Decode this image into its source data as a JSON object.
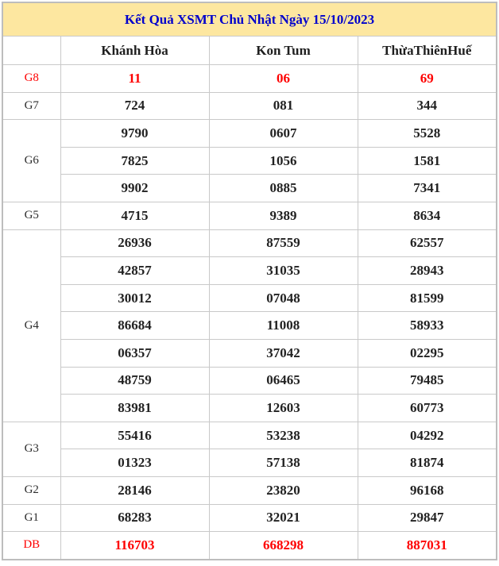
{
  "title": "Kết Quả XSMT Chủ Nhật Ngày 15/10/2023",
  "columns": [
    "Khánh Hòa",
    "Kon Tum",
    "ThừaThiênHuế"
  ],
  "colors": {
    "title_bg": "#fde7a0",
    "title_text": "#0000cc",
    "highlight": "#fe0000",
    "value_text": "#222222",
    "border": "#c9c9c9"
  },
  "groups": [
    {
      "label": "G8",
      "highlight": true,
      "rows": [
        [
          "11",
          "06",
          "69"
        ]
      ]
    },
    {
      "label": "G7",
      "highlight": false,
      "rows": [
        [
          "724",
          "081",
          "344"
        ]
      ]
    },
    {
      "label": "G6",
      "highlight": false,
      "rows": [
        [
          "9790",
          "0607",
          "5528"
        ],
        [
          "7825",
          "1056",
          "1581"
        ],
        [
          "9902",
          "0885",
          "7341"
        ]
      ]
    },
    {
      "label": "G5",
      "highlight": false,
      "rows": [
        [
          "4715",
          "9389",
          "8634"
        ]
      ]
    },
    {
      "label": "G4",
      "highlight": false,
      "rows": [
        [
          "26936",
          "87559",
          "62557"
        ],
        [
          "42857",
          "31035",
          "28943"
        ],
        [
          "30012",
          "07048",
          "81599"
        ],
        [
          "86684",
          "11008",
          "58933"
        ],
        [
          "06357",
          "37042",
          "02295"
        ],
        [
          "48759",
          "06465",
          "79485"
        ],
        [
          "83981",
          "12603",
          "60773"
        ]
      ]
    },
    {
      "label": "G3",
      "highlight": false,
      "rows": [
        [
          "55416",
          "53238",
          "04292"
        ],
        [
          "01323",
          "57138",
          "81874"
        ]
      ]
    },
    {
      "label": "G2",
      "highlight": false,
      "rows": [
        [
          "28146",
          "23820",
          "96168"
        ]
      ]
    },
    {
      "label": "G1",
      "highlight": false,
      "rows": [
        [
          "68283",
          "32021",
          "29847"
        ]
      ]
    },
    {
      "label": "DB",
      "highlight": true,
      "rows": [
        [
          "116703",
          "668298",
          "887031"
        ]
      ]
    }
  ]
}
